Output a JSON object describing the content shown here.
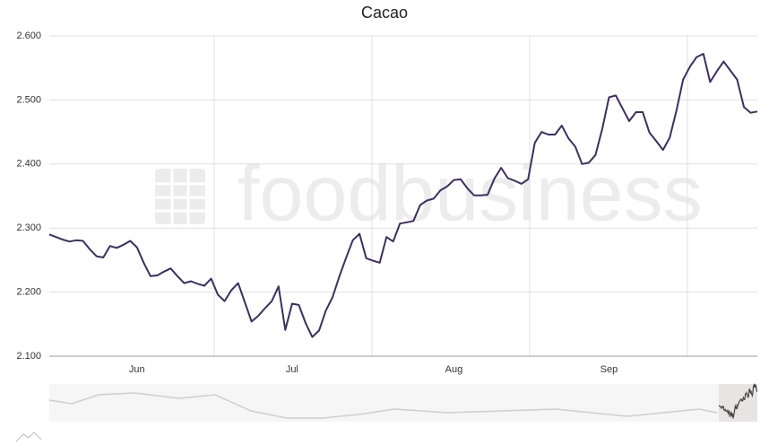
{
  "chart_data": {
    "type": "line",
    "title": "Cacao",
    "watermark": "foodbusiness",
    "categories": [
      null,
      null,
      null,
      null,
      null,
      null,
      null,
      null,
      null,
      null,
      null,
      null,
      null,
      "Jun",
      null,
      null,
      null,
      null,
      null,
      null,
      null,
      null,
      null,
      null,
      null,
      null,
      null,
      null,
      null,
      null,
      null,
      null,
      null,
      null,
      null,
      null,
      "Jul",
      null,
      null,
      null,
      null,
      null,
      null,
      null,
      null,
      null,
      null,
      null,
      null,
      null,
      null,
      null,
      null,
      null,
      null,
      null,
      null,
      null,
      null,
      null,
      "Aug",
      null,
      null,
      null,
      null,
      null,
      null,
      null,
      null,
      null,
      null,
      null,
      null,
      null,
      null,
      null,
      null,
      null,
      null,
      null,
      null,
      null,
      null,
      "Sep",
      null,
      null,
      null,
      null,
      null,
      null,
      null,
      null,
      null,
      null,
      null,
      null,
      null,
      null,
      null,
      null,
      null,
      null,
      null,
      null,
      null,
      null
    ],
    "series": [
      {
        "name": "Cacao",
        "color": "#3d2f5e",
        "values": [
          2290,
          2286,
          2282,
          2279,
          2281,
          2280,
          2267,
          2256,
          2254,
          2272,
          2269,
          2274,
          2280,
          2270,
          2246,
          2225,
          2226,
          2232,
          2237,
          2225,
          2214,
          2217,
          2213,
          2210,
          2221,
          2196,
          2186,
          2203,
          2214,
          2184,
          2154,
          2163,
          2175,
          2186,
          2209,
          2141,
          2182,
          2180,
          2152,
          2130,
          2140,
          2171,
          2192,
          2224,
          2253,
          2281,
          2291,
          2253,
          2249,
          2246,
          2286,
          2279,
          2307,
          2309,
          2311,
          2336,
          2343,
          2346,
          2359,
          2365,
          2375,
          2376,
          2362,
          2351,
          2351,
          2352,
          2377,
          2394,
          2378,
          2374,
          2369,
          2376,
          2433,
          2450,
          2446,
          2446,
          2460,
          2440,
          2427,
          2400,
          2402,
          2414,
          2455,
          2504,
          2507,
          2487,
          2467,
          2481,
          2481,
          2449,
          2436,
          2422,
          2441,
          2483,
          2532,
          2552,
          2567,
          2572,
          2528,
          2545,
          2560,
          2546,
          2532,
          2489,
          2480,
          2482
        ]
      }
    ],
    "ylim": [
      2100,
      2600
    ],
    "yticks": [
      {
        "value": 2100,
        "label": "2.100"
      },
      {
        "value": 2200,
        "label": "2.200"
      },
      {
        "value": 2300,
        "label": "2.300"
      },
      {
        "value": 2400,
        "label": "2.400"
      },
      {
        "value": 2500,
        "label": "2.500"
      },
      {
        "value": 2600,
        "label": "2.600"
      }
    ],
    "grid": true
  }
}
